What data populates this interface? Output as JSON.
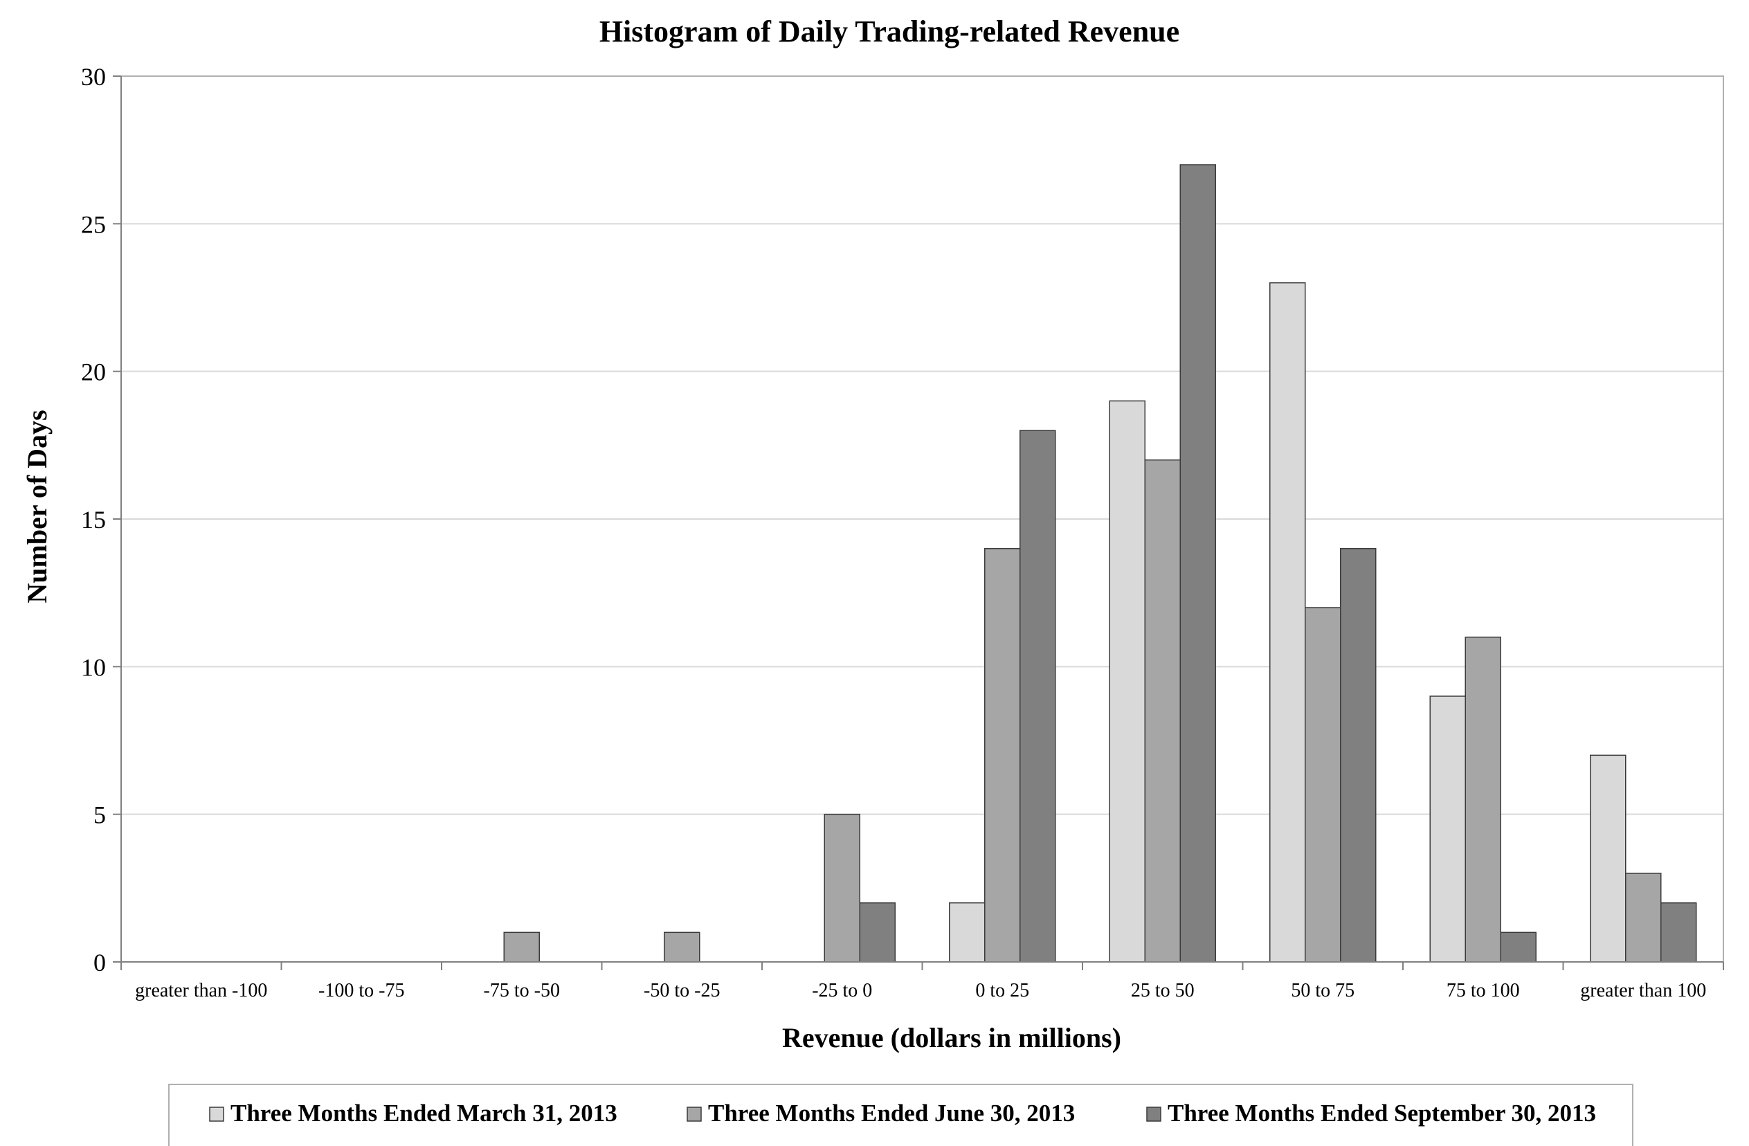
{
  "chart_data": {
    "type": "bar",
    "title": "Histogram of Daily Trading-related Revenue",
    "xlabel": "Revenue (dollars in millions)",
    "ylabel": "Number of Days",
    "ylim": [
      0,
      30
    ],
    "yticks": [
      0,
      5,
      10,
      15,
      20,
      25,
      30
    ],
    "grid": true,
    "legend_position": "bottom",
    "categories": [
      "greater than -100",
      "-100 to -75",
      "-75 to -50",
      "-50 to -25",
      "-25 to 0",
      "0 to 25",
      "25 to 50",
      "50 to 75",
      "75 to 100",
      "greater than 100"
    ],
    "series": [
      {
        "name": "Three Months Ended March 31, 2013",
        "color": "#d9d9d9",
        "values": [
          0,
          0,
          0,
          0,
          0,
          2,
          19,
          23,
          9,
          7
        ]
      },
      {
        "name": "Three Months Ended June 30, 2013",
        "color": "#a6a6a6",
        "values": [
          0,
          0,
          1,
          1,
          5,
          14,
          17,
          12,
          11,
          3
        ]
      },
      {
        "name": "Three Months Ended September 30, 2013",
        "color": "#808080",
        "values": [
          0,
          0,
          0,
          0,
          2,
          18,
          27,
          14,
          1,
          2
        ]
      }
    ]
  }
}
